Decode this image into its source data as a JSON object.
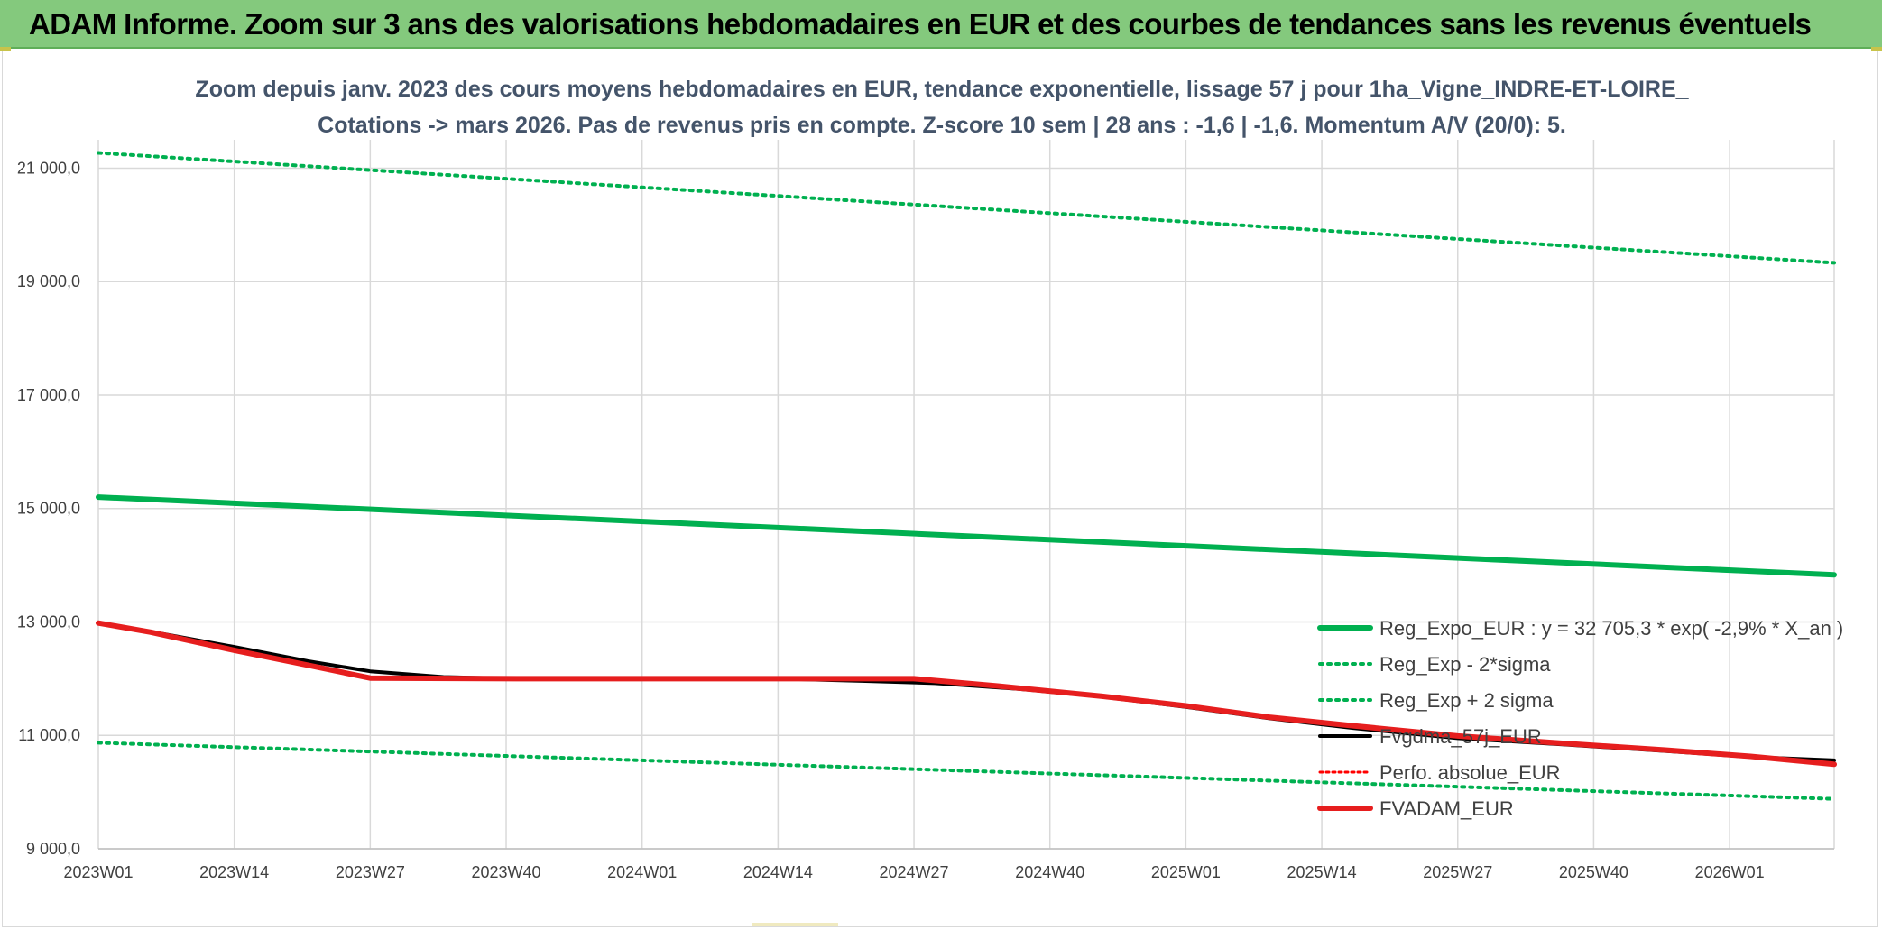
{
  "banner": {
    "title": "ADAM Informe. Zoom sur 3 ans des valorisations hebdomadaires en EUR et des courbes de tendances sans les revenus éventuels"
  },
  "colors": {
    "banner_bg": "#84c97d",
    "trend": "#00b050",
    "fvgdma": "#000000",
    "perfo": "#ff0000",
    "fvadam": "#e61e1e",
    "grid": "#d9d9d9"
  },
  "chart_data": {
    "type": "line",
    "title_line1": "Zoom depuis janv. 2023 des cours moyens hebdomadaires en EUR, tendance exponentielle, lissage 57 j pour 1ha_Vigne_INDRE-ET-LOIRE_",
    "title_line2": "Cotations -> mars 2026. Pas de revenus pris en compte. Z-score 10 sem | 28 ans : -1,6 | -1,6. Momentum A/V (20/0): 5.",
    "x_unit": "week index from 2023W01",
    "x_range": [
      0,
      166
    ],
    "x_ticks": [
      {
        "label": "2023W01",
        "x": 0
      },
      {
        "label": "2023W14",
        "x": 13
      },
      {
        "label": "2023W27",
        "x": 26
      },
      {
        "label": "2023W40",
        "x": 39
      },
      {
        "label": "2024W01",
        "x": 52
      },
      {
        "label": "2024W14",
        "x": 65
      },
      {
        "label": "2024W27",
        "x": 78
      },
      {
        "label": "2024W40",
        "x": 91
      },
      {
        "label": "2025W01",
        "x": 104
      },
      {
        "label": "2025W14",
        "x": 117
      },
      {
        "label": "2025W27",
        "x": 130
      },
      {
        "label": "2025W40",
        "x": 143
      },
      {
        "label": "2026W01",
        "x": 156
      }
    ],
    "ylim": [
      9000,
      21500
    ],
    "y_ticks": [
      {
        "label": "9 000,0",
        "v": 9000
      },
      {
        "label": "11 000,0",
        "v": 11000
      },
      {
        "label": "13 000,0",
        "v": 13000
      },
      {
        "label": "15 000,0",
        "v": 15000
      },
      {
        "label": "17 000,0",
        "v": 17000
      },
      {
        "label": "19 000,0",
        "v": 19000
      },
      {
        "label": "21 000,0",
        "v": 21000
      }
    ],
    "series": [
      {
        "key": "reg",
        "name": "Reg_Expo_EUR : y = 32 705,3 * exp( -2,9% *  X_an )",
        "color": "#00b050",
        "width": 6,
        "dash": "",
        "points": [
          [
            0,
            15200
          ],
          [
            166,
            13830
          ]
        ]
      },
      {
        "key": "minus",
        "name": "Reg_Exp - 2*sigma",
        "color": "#00b050",
        "width": 4,
        "dash": "3 6",
        "points": [
          [
            0,
            10870
          ],
          [
            166,
            9880
          ]
        ]
      },
      {
        "key": "plus",
        "name": "Reg_Exp + 2 sigma",
        "color": "#00b050",
        "width": 4,
        "dash": "3 6",
        "points": [
          [
            0,
            21270
          ],
          [
            166,
            19330
          ]
        ]
      },
      {
        "key": "fvgdma",
        "name": "Fvgdma_57j_EUR",
        "color": "#000000",
        "width": 4,
        "dash": "",
        "points": [
          [
            0,
            12990
          ],
          [
            5,
            12830
          ],
          [
            13,
            12560
          ],
          [
            20,
            12310
          ],
          [
            26,
            12130
          ],
          [
            33,
            12030
          ],
          [
            40,
            12000
          ],
          [
            52,
            12000
          ],
          [
            65,
            12000
          ],
          [
            73,
            11960
          ],
          [
            80,
            11920
          ],
          [
            88,
            11820
          ],
          [
            96,
            11680
          ],
          [
            104,
            11500
          ],
          [
            112,
            11300
          ],
          [
            120,
            11130
          ],
          [
            130,
            10950
          ],
          [
            140,
            10840
          ],
          [
            150,
            10720
          ],
          [
            158,
            10620
          ],
          [
            166,
            10560
          ]
        ]
      },
      {
        "key": "perfo",
        "name": "Perfo. absolue_EUR",
        "color": "#ff0000",
        "width": 3,
        "dash": "3 4",
        "points": [
          [
            0,
            12980
          ],
          [
            5,
            12820
          ],
          [
            13,
            12500
          ],
          [
            20,
            12240
          ],
          [
            26,
            12010
          ],
          [
            40,
            12000
          ],
          [
            52,
            12000
          ],
          [
            65,
            12000
          ],
          [
            78,
            12000
          ],
          [
            86,
            11870
          ],
          [
            96,
            11690
          ],
          [
            104,
            11520
          ],
          [
            112,
            11320
          ],
          [
            120,
            11170
          ],
          [
            130,
            10990
          ],
          [
            140,
            10860
          ],
          [
            150,
            10740
          ],
          [
            158,
            10630
          ],
          [
            166,
            10490
          ]
        ]
      },
      {
        "key": "fvadam",
        "name": "FVADAM_EUR",
        "color": "#e61e1e",
        "width": 6,
        "dash": "",
        "points": [
          [
            0,
            12980
          ],
          [
            5,
            12820
          ],
          [
            13,
            12500
          ],
          [
            20,
            12240
          ],
          [
            26,
            12010
          ],
          [
            40,
            12000
          ],
          [
            52,
            12000
          ],
          [
            65,
            12000
          ],
          [
            78,
            12000
          ],
          [
            86,
            11870
          ],
          [
            96,
            11690
          ],
          [
            104,
            11520
          ],
          [
            112,
            11320
          ],
          [
            120,
            11170
          ],
          [
            130,
            10990
          ],
          [
            140,
            10860
          ],
          [
            150,
            10740
          ],
          [
            158,
            10630
          ],
          [
            166,
            10490
          ]
        ]
      }
    ],
    "legend_position": "bottom-right",
    "grid": true
  }
}
